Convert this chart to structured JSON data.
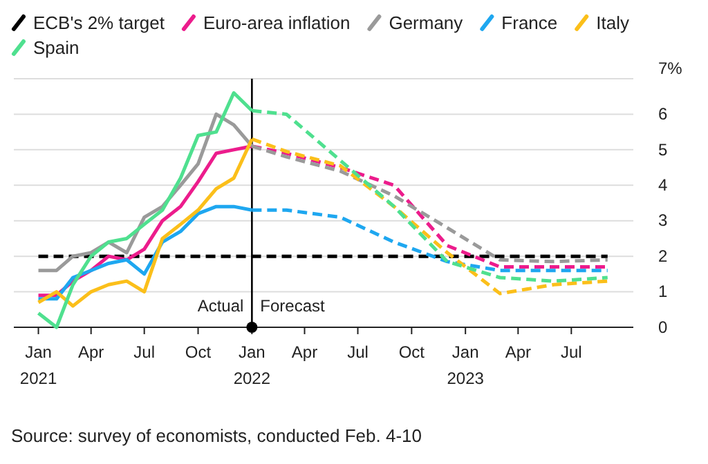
{
  "chart_data": {
    "type": "line",
    "legend": "top",
    "grid": "y",
    "xlim": [
      "2020-11-20",
      "2023-10-15"
    ],
    "ylim": [
      0,
      7
    ],
    "xticks": [
      {
        "value": "2021-01",
        "label": "Jan\n2021"
      },
      {
        "value": "2021-04",
        "label": "Apr"
      },
      {
        "value": "2021-07",
        "label": "Jul"
      },
      {
        "value": "2021-10",
        "label": "Oct"
      },
      {
        "value": "2022-01",
        "label": "Jan\n2022"
      },
      {
        "value": "2022-04",
        "label": "Apr"
      },
      {
        "value": "2022-07",
        "label": "Jul"
      },
      {
        "value": "2022-10",
        "label": "Oct"
      },
      {
        "value": "2023-01",
        "label": "Jan\n2023"
      },
      {
        "value": "2023-04",
        "label": "Apr"
      },
      {
        "value": "2023-07",
        "label": "Jul"
      }
    ],
    "yticks": [
      0,
      1,
      2,
      3,
      4,
      5,
      6,
      {
        "value": 7,
        "label": "7%"
      }
    ],
    "series": [
      {
        "name": "Euro-area inflation",
        "color": "#ec1c8c",
        "line_style": "solid",
        "x": [
          "2021-01",
          "2021-02",
          "2021-03",
          "2021-04",
          "2021-05",
          "2021-06",
          "2021-07",
          "2021-08",
          "2021-09",
          "2021-10",
          "2021-11",
          "2021-12",
          "2022-01"
        ],
        "values": [
          0.9,
          0.9,
          1.3,
          1.6,
          2.0,
          1.9,
          2.2,
          3.0,
          3.4,
          4.1,
          4.9,
          5.0,
          5.1
        ]
      },
      {
        "color": "#ec1c8c",
        "line_style": "dashed",
        "x": [
          "2022-01",
          "2022-03",
          "2022-06",
          "2022-09",
          "2022-12",
          "2023-03",
          "2023-06",
          "2023-09"
        ],
        "values": [
          5.1,
          4.9,
          4.5,
          4.0,
          2.3,
          1.7,
          1.7,
          1.7
        ]
      },
      {
        "name": "Germany",
        "color": "#9a9a9a",
        "line_style": "solid",
        "x": [
          "2021-01",
          "2021-02",
          "2021-03",
          "2021-04",
          "2021-05",
          "2021-06",
          "2021-07",
          "2021-08",
          "2021-09",
          "2021-10",
          "2021-11",
          "2021-12",
          "2022-01"
        ],
        "values": [
          1.6,
          1.6,
          2.0,
          2.1,
          2.4,
          2.1,
          3.1,
          3.4,
          4.0,
          4.6,
          6.0,
          5.7,
          5.1
        ]
      },
      {
        "color": "#9a9a9a",
        "line_style": "dashed",
        "x": [
          "2022-01",
          "2022-03",
          "2022-06",
          "2022-09",
          "2022-12",
          "2023-03",
          "2023-06",
          "2023-09"
        ],
        "values": [
          5.1,
          4.8,
          4.4,
          3.7,
          2.8,
          1.9,
          1.85,
          1.9
        ]
      },
      {
        "name": "France",
        "color": "#1ea7f0",
        "line_style": "solid",
        "x": [
          "2021-01",
          "2021-02",
          "2021-03",
          "2021-04",
          "2021-05",
          "2021-06",
          "2021-07",
          "2021-08",
          "2021-09",
          "2021-10",
          "2021-11",
          "2021-12",
          "2022-01"
        ],
        "values": [
          0.8,
          0.8,
          1.4,
          1.6,
          1.8,
          1.9,
          1.5,
          2.4,
          2.7,
          3.2,
          3.4,
          3.4,
          3.3
        ]
      },
      {
        "color": "#1ea7f0",
        "line_style": "dashed",
        "x": [
          "2022-01",
          "2022-03",
          "2022-06",
          "2022-09",
          "2022-12",
          "2023-03",
          "2023-06",
          "2023-09"
        ],
        "values": [
          3.3,
          3.3,
          3.1,
          2.4,
          1.85,
          1.6,
          1.6,
          1.6
        ]
      },
      {
        "name": "Italy",
        "color": "#fbbf1a",
        "line_style": "solid",
        "x": [
          "2021-01",
          "2021-02",
          "2021-03",
          "2021-04",
          "2021-05",
          "2021-06",
          "2021-07",
          "2021-08",
          "2021-09",
          "2021-10",
          "2021-11",
          "2021-12",
          "2022-01"
        ],
        "values": [
          0.7,
          1.0,
          0.6,
          1.0,
          1.2,
          1.3,
          1.0,
          2.5,
          2.9,
          3.3,
          3.9,
          4.2,
          5.3
        ]
      },
      {
        "color": "#fbbf1a",
        "line_style": "dashed",
        "x": [
          "2022-01",
          "2022-03",
          "2022-06",
          "2022-09",
          "2022-12",
          "2023-03",
          "2023-06",
          "2023-09"
        ],
        "values": [
          5.3,
          4.95,
          4.55,
          3.4,
          2.1,
          0.95,
          1.2,
          1.3
        ]
      },
      {
        "name": "Spain",
        "color": "#4fe08f",
        "line_style": "solid",
        "x": [
          "2021-01",
          "2021-02",
          "2021-03",
          "2021-04",
          "2021-05",
          "2021-06",
          "2021-07",
          "2021-08",
          "2021-09",
          "2021-10",
          "2021-11",
          "2021-12",
          "2022-01"
        ],
        "values": [
          0.4,
          0,
          1.2,
          2.0,
          2.4,
          2.5,
          2.9,
          3.3,
          4.2,
          5.4,
          5.5,
          6.6,
          6.1
        ]
      },
      {
        "color": "#4fe08f",
        "line_style": "dashed",
        "x": [
          "2022-01",
          "2022-03",
          "2022-06",
          "2022-09",
          "2022-12",
          "2023-03",
          "2023-06",
          "2023-09"
        ],
        "values": [
          6.1,
          6.0,
          4.7,
          3.4,
          1.85,
          1.4,
          1.3,
          1.4
        ]
      }
    ],
    "ref_lines": [
      {
        "axis": "y",
        "value": 2,
        "label": "ECB's 2% target",
        "color": "#000000",
        "line_style": "dashed"
      },
      {
        "axis": "x",
        "value": "2022-01",
        "label": null,
        "color": "#000000",
        "line_style": "solid"
      }
    ],
    "annotations": [
      {
        "text": "Actual",
        "x": "2022-01",
        "y": 0.45
      },
      {
        "text": "Forecast",
        "x": "2022-01",
        "y": 0.45
      },
      "Source: survey of economists, conducted Feb. 4-10"
    ]
  }
}
